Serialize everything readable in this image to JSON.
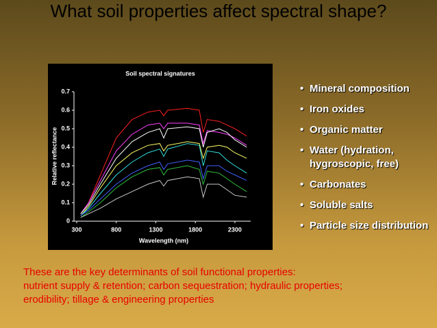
{
  "slide": {
    "title": "What soil properties affect spectral shape?",
    "bullets": [
      "Mineral composition",
      "Iron oxides",
      "Organic matter",
      "Water (hydration, hygroscopic,  free)",
      "Carbonates",
      "Soluble salts",
      "Particle size distribution"
    ],
    "footer": [
      "These are the key determinants of soil functional properties:",
      "nutrient supply & retention; carbon sequestration; hydraulic properties;",
      "erodibility; tillage & engineering properties"
    ]
  },
  "chart_data": {
    "type": "line",
    "title": "Soil spectral signatures",
    "x_label": "Wavelength (nm)",
    "y_label": "Relative reflectance",
    "xlim": [
      300,
      2500
    ],
    "ylim": [
      0,
      0.7
    ],
    "xticks": [
      300,
      800,
      1300,
      1800,
      2300
    ],
    "yticks": [
      0,
      0.1,
      0.2,
      0.3,
      0.4,
      0.5,
      0.6,
      0.7
    ],
    "x": [
      350,
      450,
      600,
      800,
      1000,
      1200,
      1350,
      1400,
      1450,
      1700,
      1850,
      1900,
      1950,
      2100,
      2200,
      2300,
      2450
    ],
    "series": [
      {
        "color": "#ff2020",
        "values": [
          0.04,
          0.1,
          0.25,
          0.45,
          0.55,
          0.59,
          0.6,
          0.57,
          0.6,
          0.61,
          0.6,
          0.48,
          0.55,
          0.54,
          0.52,
          0.5,
          0.46
        ]
      },
      {
        "color": "#ff40ff",
        "values": [
          0.04,
          0.1,
          0.22,
          0.38,
          0.47,
          0.52,
          0.53,
          0.5,
          0.53,
          0.53,
          0.52,
          0.42,
          0.49,
          0.48,
          0.47,
          0.45,
          0.41
        ]
      },
      {
        "color": "#ffffff",
        "values": [
          0.04,
          0.09,
          0.2,
          0.34,
          0.43,
          0.48,
          0.5,
          0.45,
          0.5,
          0.51,
          0.5,
          0.4,
          0.48,
          0.5,
          0.48,
          0.44,
          0.4
        ]
      },
      {
        "color": "#ffff66",
        "values": [
          0.03,
          0.08,
          0.18,
          0.3,
          0.37,
          0.41,
          0.42,
          0.38,
          0.41,
          0.43,
          0.42,
          0.34,
          0.4,
          0.41,
          0.4,
          0.37,
          0.34
        ]
      },
      {
        "color": "#33e0e0",
        "values": [
          0.03,
          0.07,
          0.15,
          0.25,
          0.32,
          0.37,
          0.39,
          0.35,
          0.39,
          0.42,
          0.41,
          0.3,
          0.38,
          0.37,
          0.33,
          0.3,
          0.26
        ]
      },
      {
        "color": "#4060ff",
        "values": [
          0.03,
          0.06,
          0.12,
          0.2,
          0.26,
          0.3,
          0.32,
          0.28,
          0.31,
          0.33,
          0.32,
          0.23,
          0.3,
          0.3,
          0.27,
          0.25,
          0.22
        ]
      },
      {
        "color": "#30c040",
        "values": [
          0.02,
          0.05,
          0.1,
          0.18,
          0.24,
          0.28,
          0.29,
          0.25,
          0.28,
          0.3,
          0.28,
          0.2,
          0.27,
          0.26,
          0.23,
          0.2,
          0.16
        ]
      },
      {
        "color": "#c8c8c8",
        "values": [
          0.02,
          0.04,
          0.07,
          0.12,
          0.16,
          0.2,
          0.22,
          0.19,
          0.22,
          0.24,
          0.23,
          0.13,
          0.2,
          0.2,
          0.17,
          0.14,
          0.13
        ]
      }
    ]
  }
}
